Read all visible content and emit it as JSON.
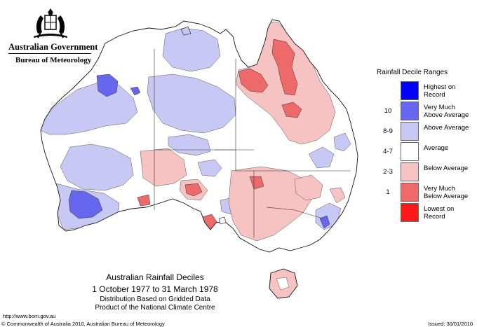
{
  "header": {
    "government": "Australian Government",
    "bureau": "Bureau of Meteorology"
  },
  "legend": {
    "title": "Rainfall Decile Ranges",
    "items": [
      {
        "label": "Highest on Record",
        "range": "",
        "color": "#0000ff"
      },
      {
        "label": "Very Much Above Average",
        "range": "10",
        "color": "#6666ee"
      },
      {
        "label": "Above Average",
        "range": "8-9",
        "color": "#c8c8f4"
      },
      {
        "label": "Average",
        "range": "4-7",
        "color": "#ffffff"
      },
      {
        "label": "Below Average",
        "range": "2-3",
        "color": "#f6c2c2"
      },
      {
        "label": "Very Much Below Average",
        "range": "1",
        "color": "#ee6a6a"
      },
      {
        "label": "Lowest on Record",
        "range": "",
        "color": "#ff1a1a"
      }
    ]
  },
  "map_title": {
    "line1": "Australian Rainfall Deciles",
    "line2": "1 October 1977 to 31 March 1978",
    "line3": "Distribution Based on Gridded Data",
    "line4": "Product of the National Climate Centre"
  },
  "footer": {
    "url": "http://www.bom.gov.au",
    "copyright": "© Commonwealth of Australia 2010, Australian Bureau of Meteorology",
    "issued": "Issued: 30/01/2010"
  }
}
